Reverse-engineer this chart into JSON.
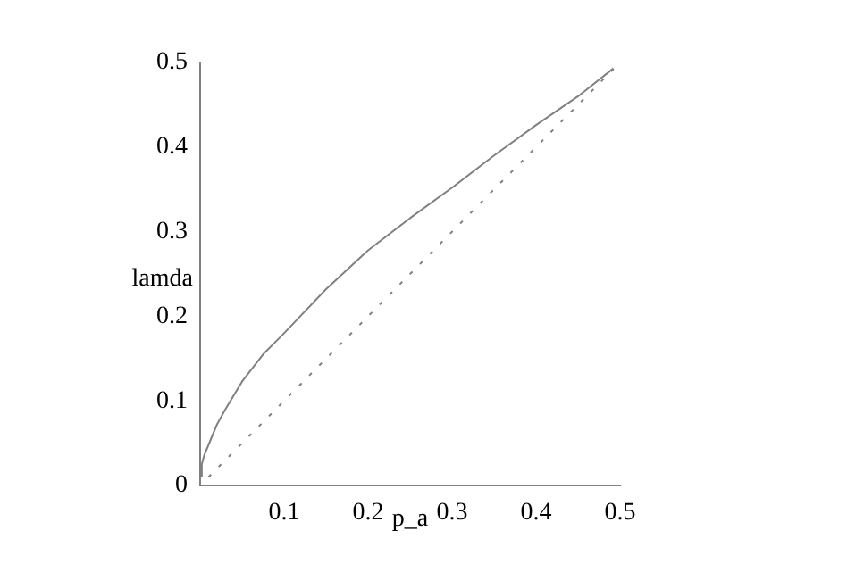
{
  "chart_data": {
    "type": "line",
    "xlabel": "p_a",
    "ylabel": "lamda",
    "xlim": [
      0,
      0.5
    ],
    "ylim": [
      0,
      0.5
    ],
    "xticks": [
      0.1,
      0.2,
      0.3,
      0.4,
      0.5
    ],
    "yticks": [
      0,
      0.1,
      0.2,
      0.3,
      0.4,
      0.5
    ],
    "grid": false,
    "legend": false,
    "marker": "none",
    "series": [
      {
        "color": "#808080",
        "line_style": "solid",
        "x": [
          0,
          0.002,
          0.005,
          0.01,
          0.02,
          0.03,
          0.05,
          0.075,
          0.1,
          0.15,
          0.2,
          0.25,
          0.3,
          0.35,
          0.4,
          0.45,
          0.492
        ],
        "values": [
          0.011,
          0.025,
          0.036,
          0.048,
          0.072,
          0.09,
          0.123,
          0.155,
          0.18,
          0.232,
          0.278,
          0.316,
          0.352,
          0.39,
          0.426,
          0.46,
          0.493
        ]
      },
      {
        "color": "#808080",
        "line_style": "dotted",
        "x": [
          0.01,
          0.5
        ],
        "values": [
          0.01,
          0.5
        ]
      }
    ]
  }
}
